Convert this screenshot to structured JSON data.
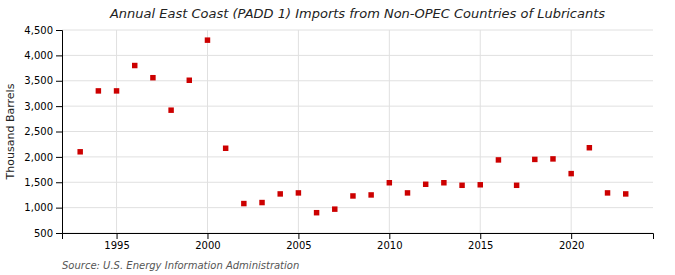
{
  "chart_data": {
    "type": "scatter",
    "title": "Annual East Coast (PADD 1) Imports from Non-OPEC Countries of Lubricants",
    "ylabel": "Thousand Barrels",
    "source": "Source: U.S. Energy Information Administration",
    "x": [
      1993,
      1994,
      1995,
      1996,
      1997,
      1998,
      1999,
      2000,
      2001,
      2002,
      2003,
      2004,
      2005,
      2006,
      2007,
      2008,
      2009,
      2010,
      2011,
      2012,
      2013,
      2014,
      2015,
      2016,
      2017,
      2018,
      2019,
      2020,
      2021,
      2022,
      2023
    ],
    "values": [
      2100,
      3300,
      3300,
      3800,
      3560,
      2920,
      3510,
      4300,
      2170,
      1080,
      1100,
      1270,
      1290,
      900,
      970,
      1230,
      1250,
      1490,
      1290,
      1460,
      1490,
      1440,
      1450,
      1940,
      1440,
      1950,
      1960,
      1670,
      2180,
      1290,
      1270
    ],
    "color": "#cc0000",
    "marker": "square",
    "xlim": [
      1992,
      2024.5
    ],
    "xticks": [
      1995,
      2000,
      2005,
      2010,
      2015,
      2020
    ],
    "ylim": [
      500,
      4500
    ],
    "yticks": [
      500,
      {
        "value": 1000,
        "label": "1,000"
      },
      {
        "value": 1500,
        "label": "1,500"
      },
      {
        "value": 2000,
        "label": "2,000"
      },
      {
        "value": 2500,
        "label": "2,500"
      },
      {
        "value": 3000,
        "label": "3,000"
      },
      {
        "value": 3500,
        "label": "3,500"
      },
      {
        "value": 4000,
        "label": "4,000"
      },
      {
        "value": 4500,
        "label": "4,500"
      }
    ],
    "grid": true
  }
}
